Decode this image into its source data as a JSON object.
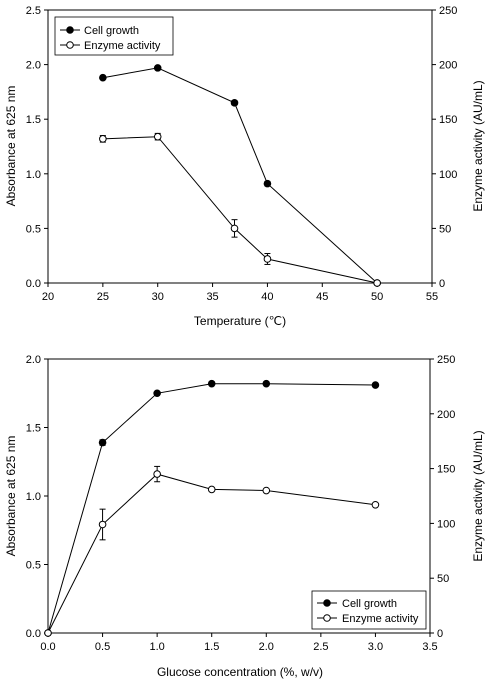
{
  "colors": {
    "ink": "#000000",
    "background": "#ffffff",
    "open_marker_fill": "#ffffff"
  },
  "chart_data": [
    {
      "type": "line",
      "panel": "top",
      "xlabel": "Temperature (℃)",
      "ylabel": "Absorbance at 625 nm",
      "y2label": "Enzyme activity (AU/mL)",
      "xlim": [
        20,
        55
      ],
      "ylim": [
        0,
        2.5
      ],
      "y2lim": [
        0,
        250
      ],
      "xticks": [
        "20",
        "25",
        "30",
        "35",
        "40",
        "45",
        "50",
        "55"
      ],
      "xtick_values": [
        20,
        25,
        30,
        35,
        40,
        45,
        50,
        55
      ],
      "yticks": [
        "0.0",
        "0.5",
        "1.0",
        "1.5",
        "2.0",
        "2.5"
      ],
      "ytick_values": [
        0,
        0.5,
        1.0,
        1.5,
        2.0,
        2.5
      ],
      "y2ticks": [
        "0",
        "50",
        "100",
        "150",
        "200",
        "250"
      ],
      "y2tick_values": [
        0,
        50,
        100,
        150,
        200,
        250
      ],
      "legend_position": "top-left",
      "grid": false,
      "series": [
        {
          "name": "Cell growth",
          "marker": "filled-circle",
          "axis": "left",
          "x": [
            25,
            30,
            37,
            40,
            50
          ],
          "y": [
            1.88,
            1.97,
            1.65,
            0.91,
            0.0
          ],
          "err": [
            0,
            0.01,
            0.02,
            0.02,
            0
          ]
        },
        {
          "name": "Enzyme activity",
          "marker": "open-circle",
          "axis": "right",
          "x": [
            25,
            30,
            37,
            40,
            50
          ],
          "y": [
            132,
            134,
            50,
            22,
            0
          ],
          "err": [
            3,
            3,
            8,
            5,
            0
          ]
        }
      ]
    },
    {
      "type": "line",
      "panel": "bottom",
      "xlabel": "Glucose concentration (%, w/v)",
      "ylabel": "Absorbance at 625 nm",
      "y2label": "Enzyme activity (AU/mL)",
      "xlim": [
        0,
        3.5
      ],
      "ylim": [
        0,
        2.0
      ],
      "y2lim": [
        0,
        250
      ],
      "xticks": [
        "0.0",
        "0.5",
        "1.0",
        "1.5",
        "2.0",
        "2.5",
        "3.0",
        "3.5"
      ],
      "xtick_values": [
        0,
        0.5,
        1.0,
        1.5,
        2.0,
        2.5,
        3.0,
        3.5
      ],
      "yticks": [
        "0.0",
        "0.5",
        "1.0",
        "1.5",
        "2.0"
      ],
      "ytick_values": [
        0,
        0.5,
        1.0,
        1.5,
        2.0
      ],
      "y2ticks": [
        "0",
        "50",
        "100",
        "150",
        "200",
        "250"
      ],
      "y2tick_values": [
        0,
        50,
        100,
        150,
        200,
        250
      ],
      "legend_position": "bottom-right",
      "grid": false,
      "series": [
        {
          "name": "Cell growth",
          "marker": "filled-circle",
          "axis": "left",
          "x": [
            0,
            0.5,
            1.0,
            1.5,
            2.0,
            3.0
          ],
          "y": [
            0.0,
            1.39,
            1.75,
            1.82,
            1.82,
            1.81
          ],
          "err": [
            0,
            0.02,
            0,
            0,
            0,
            0
          ]
        },
        {
          "name": "Enzyme activity",
          "marker": "open-circle",
          "axis": "right",
          "x": [
            0,
            0.5,
            1.0,
            1.5,
            2.0,
            3.0
          ],
          "y": [
            0,
            99,
            145,
            131,
            130,
            117
          ],
          "err": [
            0,
            14,
            7,
            0,
            0,
            0
          ]
        }
      ]
    }
  ]
}
